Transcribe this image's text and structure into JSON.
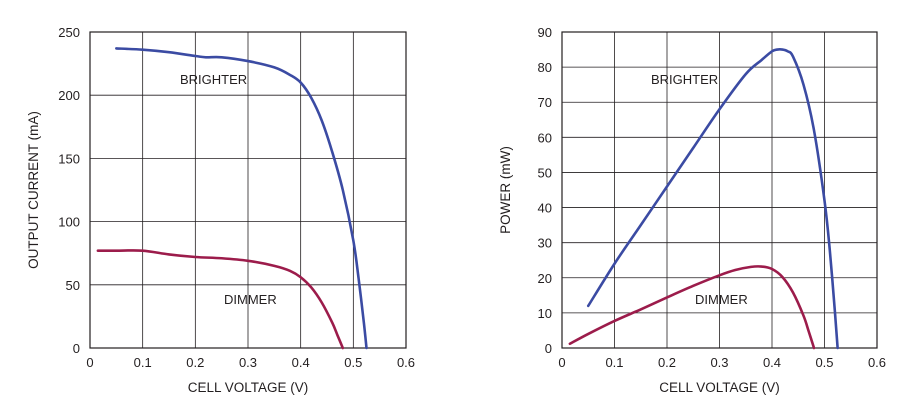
{
  "colors": {
    "brighter": "#3b4ba3",
    "dimmer": "#9c1c4b",
    "grid": "#231f20",
    "text": "#231f20"
  },
  "chart_data": [
    {
      "type": "line",
      "title": "",
      "xlabel": "CELL VOLTAGE (V)",
      "ylabel": "OUTPUT CURRENT (mA)",
      "xlim": [
        0,
        0.6
      ],
      "ylim": [
        0,
        250
      ],
      "xticks": [
        "0",
        "0.1",
        "0.2",
        "0.3",
        "0.4",
        "0.5",
        "0.6"
      ],
      "yticks": [
        "0",
        "50",
        "100",
        "150",
        "200",
        "250"
      ],
      "grid": true,
      "series": [
        {
          "name": "BRIGHTER",
          "color_key": "brighter",
          "x": [
            0.05,
            0.1,
            0.15,
            0.2,
            0.22,
            0.25,
            0.3,
            0.35,
            0.38,
            0.4,
            0.42,
            0.44,
            0.46,
            0.48,
            0.5,
            0.51,
            0.52,
            0.525
          ],
          "y": [
            237,
            236,
            234,
            231,
            230,
            230,
            227,
            222,
            216,
            210,
            198,
            180,
            155,
            125,
            85,
            55,
            20,
            0
          ]
        },
        {
          "name": "DIMMER",
          "color_key": "dimmer",
          "x": [
            0.015,
            0.05,
            0.1,
            0.15,
            0.2,
            0.25,
            0.3,
            0.35,
            0.38,
            0.4,
            0.42,
            0.44,
            0.46,
            0.47,
            0.48
          ],
          "y": [
            77,
            77,
            77,
            74,
            72,
            71,
            69,
            65,
            61,
            56,
            48,
            36,
            20,
            10,
            0
          ]
        }
      ]
    },
    {
      "type": "line",
      "title": "",
      "xlabel": "CELL VOLTAGE (V)",
      "ylabel": "POWER (mW)",
      "xlim": [
        0,
        0.6
      ],
      "ylim": [
        0,
        90
      ],
      "xticks": [
        "0",
        "0.1",
        "0.2",
        "0.3",
        "0.4",
        "0.5",
        "0.6"
      ],
      "yticks": [
        "0",
        "10",
        "20",
        "30",
        "40",
        "50",
        "60",
        "70",
        "80",
        "90"
      ],
      "grid": true,
      "series": [
        {
          "name": "BRIGHTER",
          "color_key": "brighter",
          "x": [
            0.05,
            0.1,
            0.15,
            0.2,
            0.25,
            0.3,
            0.35,
            0.38,
            0.4,
            0.41,
            0.42,
            0.43,
            0.44,
            0.46,
            0.48,
            0.5,
            0.51,
            0.52,
            0.525
          ],
          "y": [
            12,
            24,
            35,
            46,
            57,
            68,
            78,
            82,
            84.5,
            85,
            85,
            84.5,
            83,
            75,
            62,
            42,
            28,
            10,
            0
          ]
        },
        {
          "name": "DIMMER",
          "color_key": "dimmer",
          "x": [
            0.015,
            0.05,
            0.1,
            0.15,
            0.2,
            0.25,
            0.3,
            0.33,
            0.36,
            0.38,
            0.4,
            0.42,
            0.44,
            0.46,
            0.47,
            0.48
          ],
          "y": [
            1.2,
            4,
            7.7,
            11,
            14.4,
            17.7,
            20.7,
            22.2,
            23.1,
            23.2,
            22.5,
            20.2,
            15.8,
            9.2,
            4.7,
            0
          ]
        }
      ]
    }
  ]
}
